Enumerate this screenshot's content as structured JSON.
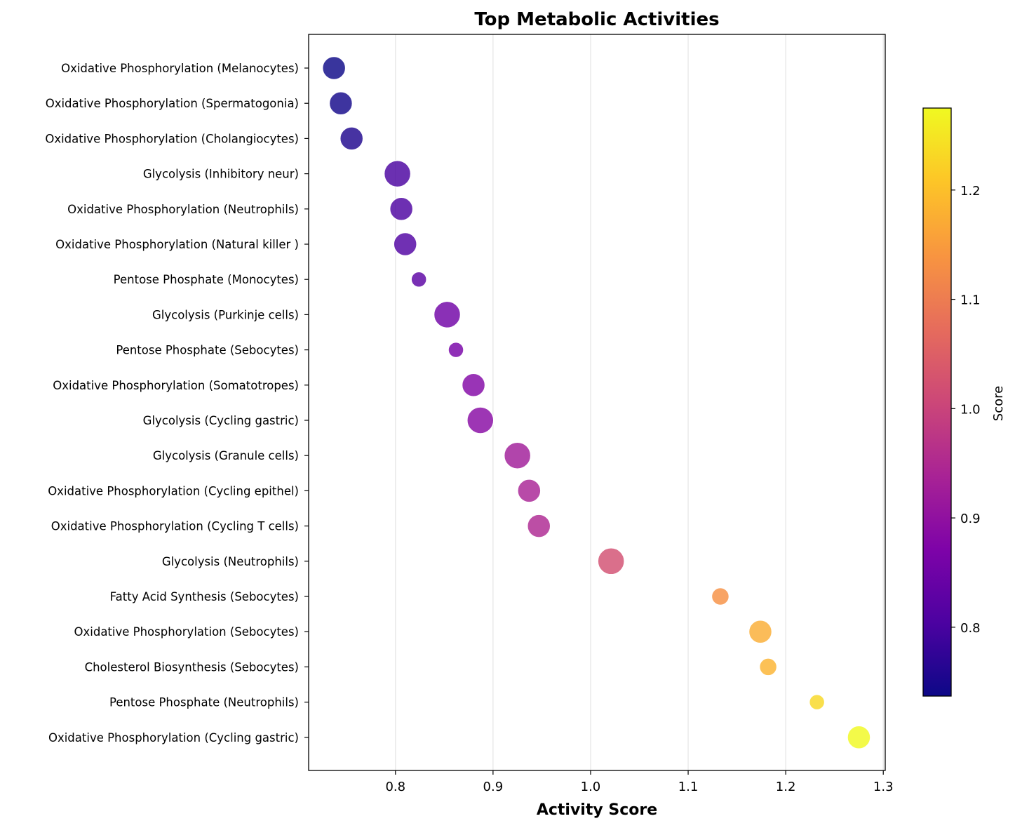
{
  "chart_data": {
    "type": "scatter",
    "title": "Top Metabolic Activities",
    "xlabel": "Activity Score",
    "ylabel": "",
    "xlim": [
      0.711,
      1.302
    ],
    "xticks": [
      "0.8",
      "0.9",
      "1.0",
      "1.1",
      "1.2",
      "1.3"
    ],
    "xtick_values": [
      0.8,
      0.9,
      1.0,
      1.1,
      1.2,
      1.3
    ],
    "grid": "x",
    "colormap": "plasma",
    "colorbar": {
      "label": "Score",
      "range": [
        0.737,
        1.275
      ],
      "ticks": [
        "0.8",
        "0.9",
        "1.0",
        "1.1",
        "1.2"
      ],
      "tick_values": [
        0.8,
        0.9,
        1.0,
        1.1,
        1.2
      ]
    },
    "points": [
      {
        "label": "Oxidative Phosphorylation (Melanocytes)",
        "x": 0.737,
        "size": 3
      },
      {
        "label": "Oxidative Phosphorylation (Spermatogonia)",
        "x": 0.744,
        "size": 3
      },
      {
        "label": "Oxidative Phosphorylation (Cholangiocytes)",
        "x": 0.755,
        "size": 3
      },
      {
        "label": "Glycolysis (Inhibitory neur)",
        "x": 0.802,
        "size": 4
      },
      {
        "label": "Oxidative Phosphorylation (Neutrophils)",
        "x": 0.806,
        "size": 3
      },
      {
        "label": "Oxidative Phosphorylation (Natural killer )",
        "x": 0.81,
        "size": 3
      },
      {
        "label": "Pentose Phosphate (Monocytes)",
        "x": 0.824,
        "size": 1
      },
      {
        "label": "Glycolysis (Purkinje cells)",
        "x": 0.853,
        "size": 4
      },
      {
        "label": "Pentose Phosphate (Sebocytes)",
        "x": 0.862,
        "size": 1
      },
      {
        "label": "Oxidative Phosphorylation (Somatotropes)",
        "x": 0.88,
        "size": 3
      },
      {
        "label": "Glycolysis (Cycling gastric)",
        "x": 0.887,
        "size": 4
      },
      {
        "label": "Glycolysis (Granule cells)",
        "x": 0.925,
        "size": 4
      },
      {
        "label": "Oxidative Phosphorylation (Cycling epithel)",
        "x": 0.937,
        "size": 3
      },
      {
        "label": "Oxidative Phosphorylation (Cycling T cells)",
        "x": 0.947,
        "size": 3
      },
      {
        "label": "Glycolysis (Neutrophils)",
        "x": 1.021,
        "size": 4
      },
      {
        "label": "Fatty Acid Synthesis (Sebocytes)",
        "x": 1.133,
        "size": 2
      },
      {
        "label": "Oxidative Phosphorylation (Sebocytes)",
        "x": 1.174,
        "size": 3
      },
      {
        "label": "Cholesterol Biosynthesis (Sebocytes)",
        "x": 1.182,
        "size": 2
      },
      {
        "label": "Pentose Phosphate (Neutrophils)",
        "x": 1.232,
        "size": 1
      },
      {
        "label": "Oxidative Phosphorylation (Cycling gastric)",
        "x": 1.275,
        "size": 3
      }
    ]
  }
}
